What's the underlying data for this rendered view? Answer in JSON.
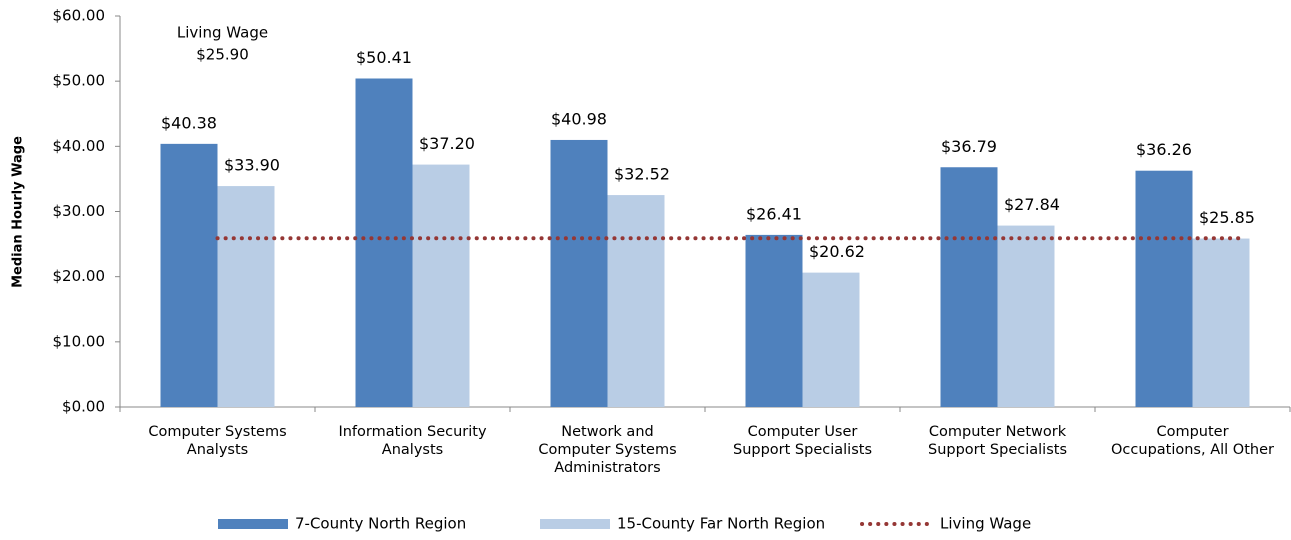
{
  "chart_data": {
    "type": "bar",
    "y_axis_label": "Median Hourly Wage",
    "categories": [
      "Computer Systems\nAnalysts",
      "Information Security\nAnalysts",
      "Network and\nComputer Systems\nAdministrators",
      "Computer User\nSupport Specialists",
      "Computer Network\nSupport Specialists",
      "Computer\nOccupations, All Other"
    ],
    "series": [
      {
        "name": "7-County North Region",
        "color": "#4f81bd",
        "values": [
          40.38,
          50.41,
          40.98,
          26.41,
          36.79,
          36.26
        ],
        "value_labels": [
          "$40.38",
          "$50.41",
          "$40.98",
          "$26.41",
          "$36.79",
          "$36.26"
        ]
      },
      {
        "name": "15-County Far North Region",
        "color": "#b9cde5",
        "values": [
          33.9,
          37.2,
          32.52,
          20.62,
          27.84,
          25.85
        ],
        "value_labels": [
          "$33.90",
          "$37.20",
          "$32.52",
          "$20.62",
          "$27.84",
          "$25.85"
        ]
      }
    ],
    "reference_line": {
      "name": "Living Wage",
      "value": 25.9,
      "value_label": "$25.90",
      "color": "#953735"
    },
    "ylim": [
      0,
      60
    ],
    "yticks": [
      {
        "value": 0,
        "label": "$0.00"
      },
      {
        "value": 10,
        "label": "$10.00"
      },
      {
        "value": 20,
        "label": "$20.00"
      },
      {
        "value": 30,
        "label": "$30.00"
      },
      {
        "value": 40,
        "label": "$40.00"
      },
      {
        "value": 50,
        "label": "$50.00"
      },
      {
        "value": 60,
        "label": "$60.00"
      }
    ],
    "grid": false
  }
}
